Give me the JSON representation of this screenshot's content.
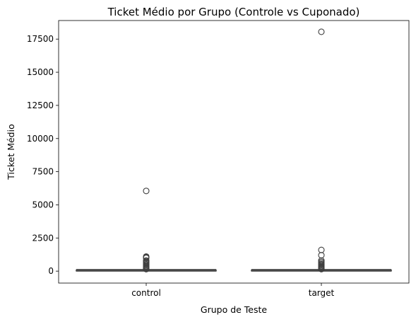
{
  "chart_data": {
    "type": "boxplot",
    "title": "Ticket Médio por Grupo (Controle vs Cuponado)",
    "xlabel": "Grupo de Teste",
    "ylabel": "Ticket Médio",
    "categories": [
      "control",
      "target"
    ],
    "ylim": [
      -900,
      18900
    ],
    "yticks": [
      0,
      2500,
      5000,
      7500,
      10000,
      12500,
      15000,
      17500
    ],
    "grid": false,
    "colors": {
      "box_edge": "#3f3f3f",
      "outlier_edge": "#3f3f3f"
    },
    "boxes": [
      {
        "category": "control",
        "whisker_low": 0,
        "q1": 20,
        "median": 40,
        "q3": 70,
        "whisker_high": 130,
        "outliers": [
          150,
          200,
          260,
          320,
          380,
          450,
          520,
          600,
          680,
          750,
          800,
          1000,
          1050,
          1100,
          6050
        ]
      },
      {
        "category": "target",
        "whisker_low": 0,
        "q1": 20,
        "median": 40,
        "q3": 70,
        "whisker_high": 130,
        "outliers": [
          150,
          200,
          260,
          320,
          380,
          450,
          520,
          600,
          700,
          800,
          1200,
          1600,
          18050
        ]
      }
    ]
  }
}
